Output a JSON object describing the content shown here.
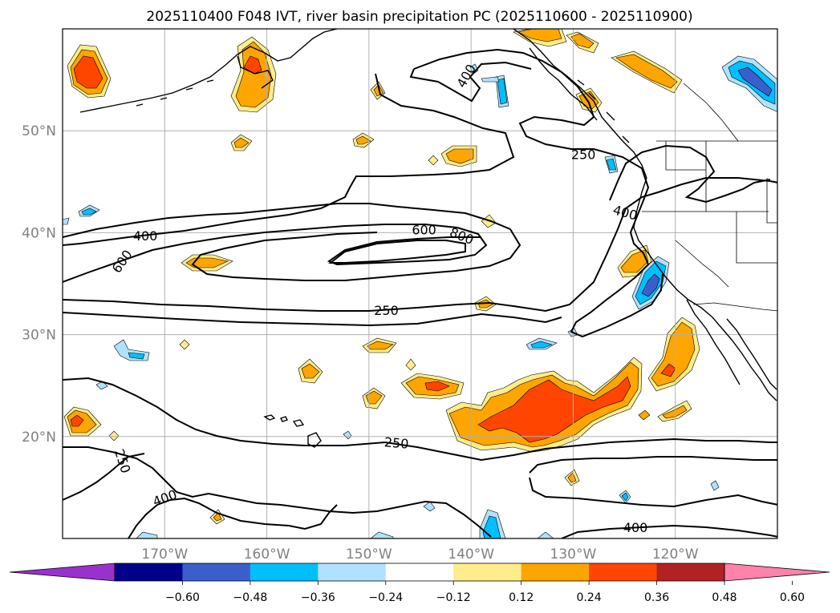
{
  "title": "2025110400 F048 IVT, river basin precipitation PC (2025110600 - 2025110900)",
  "map": {
    "lon_range": [
      -180,
      -110
    ],
    "lat_range": [
      10,
      60
    ],
    "grid": true,
    "lon_ticks": [
      {
        "lon": -170,
        "label": "170°W"
      },
      {
        "lon": -160,
        "label": "160°W"
      },
      {
        "lon": -150,
        "label": "150°W"
      },
      {
        "lon": -140,
        "label": "140°W"
      },
      {
        "lon": -130,
        "label": "130°W"
      },
      {
        "lon": -120,
        "label": "120°W"
      }
    ],
    "lat_ticks": [
      {
        "lat": 50,
        "label": "50°N"
      },
      {
        "lat": 40,
        "label": "40°N"
      },
      {
        "lat": 30,
        "label": "30°N"
      },
      {
        "lat": 20,
        "label": "20°N"
      }
    ],
    "ivt_contour_levels": [
      250,
      400,
      600,
      800
    ],
    "contour_labels": [
      {
        "text": "400",
        "lon": -171.9,
        "lat": 39.7,
        "rot": 0
      },
      {
        "text": "600",
        "lon": -174.2,
        "lat": 37.2,
        "rot": -55
      },
      {
        "text": "600",
        "lon": -144.6,
        "lat": 40.3,
        "rot": 0
      },
      {
        "text": "800",
        "lon": -140.9,
        "lat": 39.7,
        "rot": 22
      },
      {
        "text": "250",
        "lon": -148.3,
        "lat": 32.4,
        "rot": 0
      },
      {
        "text": "250",
        "lon": -129.0,
        "lat": 47.7,
        "rot": 0
      },
      {
        "text": "400",
        "lon": -124.9,
        "lat": 42.0,
        "rot": 15
      },
      {
        "text": "400",
        "lon": -140.5,
        "lat": 55.4,
        "rot": -60
      },
      {
        "text": "250",
        "lon": -174.1,
        "lat": 17.6,
        "rot": 72
      },
      {
        "text": "250",
        "lon": -147.3,
        "lat": 19.4,
        "rot": 5
      },
      {
        "text": "400",
        "lon": -170.0,
        "lat": 14.0,
        "rot": -20
      },
      {
        "text": "400",
        "lon": -123.9,
        "lat": 11.1,
        "rot": 0
      }
    ]
  },
  "colorbar": {
    "tick_labels": [
      "−0.60",
      "−0.48",
      "−0.36",
      "−0.24",
      "−0.12",
      "0.12",
      "0.24",
      "0.36",
      "0.48",
      "0.60"
    ],
    "colors": [
      "#9932cc",
      "#00008b",
      "#3a5fcd",
      "#00bfff",
      "#b0e2ff",
      "#ffffff",
      "#ffec8b",
      "#ffa500",
      "#ff4500",
      "#b22222",
      "#ff82ab"
    ]
  },
  "colors": {
    "contour": "#000000",
    "coast": "#000000",
    "grid": "#b0b0b0",
    "tick_label": "#808080"
  }
}
